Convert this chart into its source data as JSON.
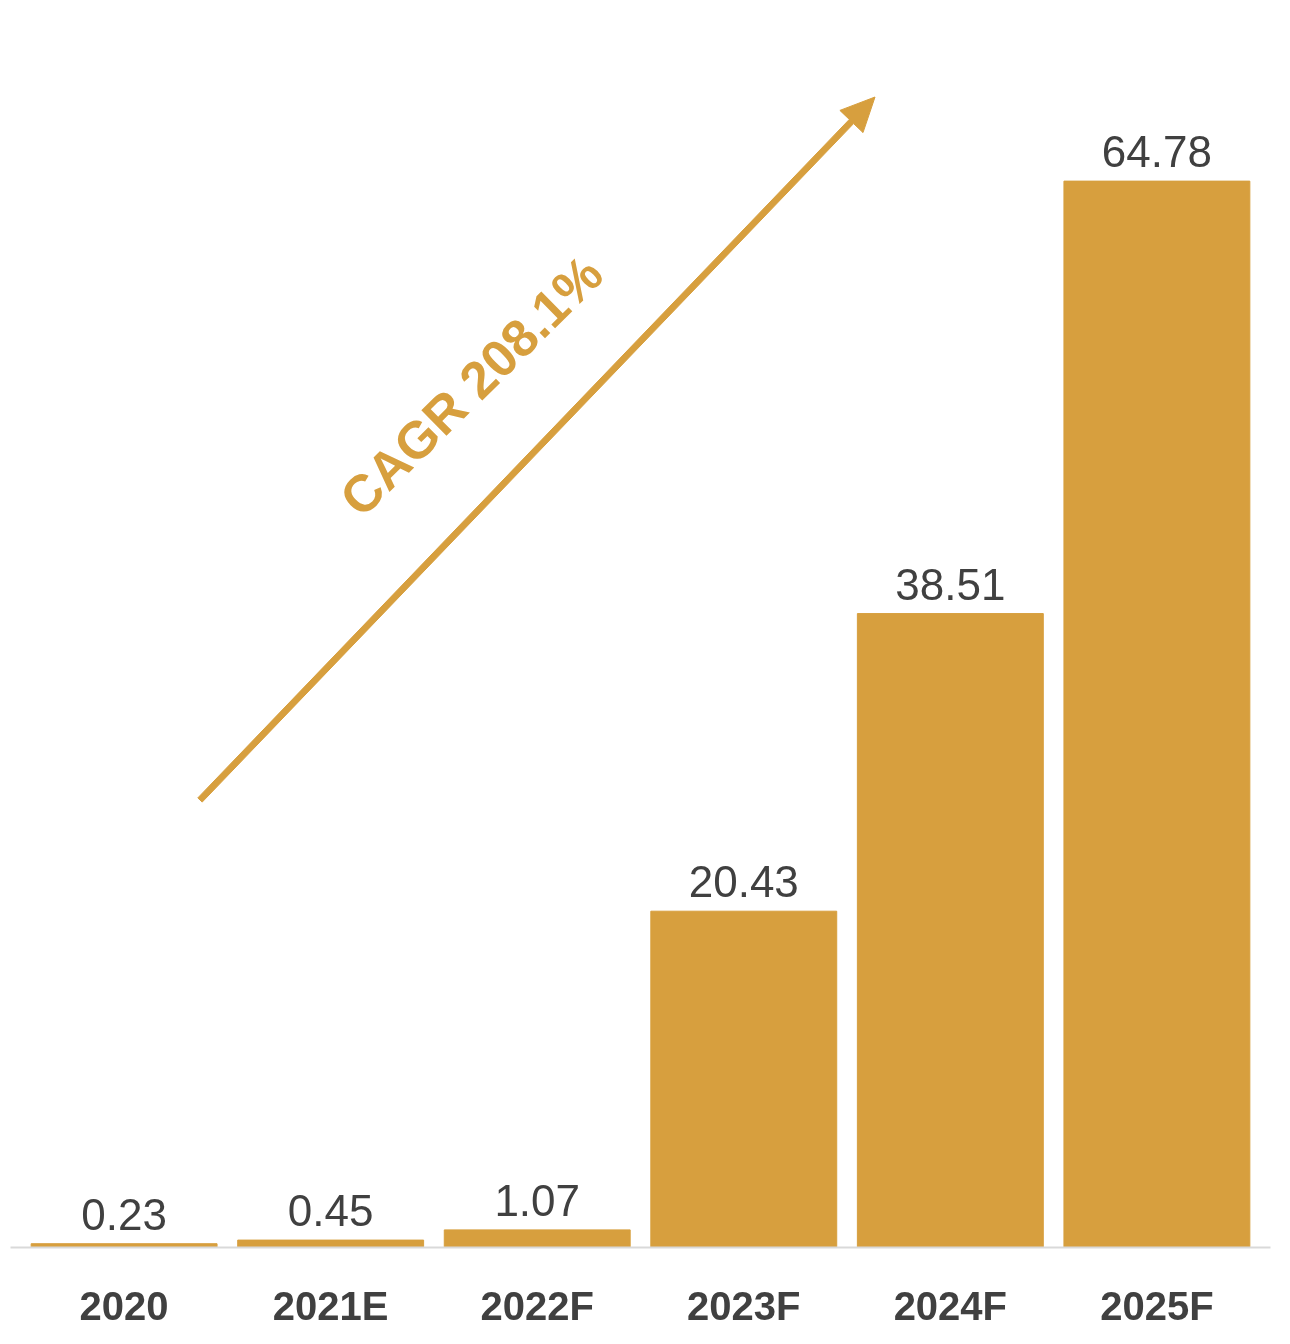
{
  "chart_data": {
    "type": "bar",
    "categories": [
      "2020",
      "2021E",
      "2022F",
      "2023F",
      "2024F",
      "2025F"
    ],
    "values": [
      0.23,
      0.45,
      1.07,
      20.43,
      38.51,
      64.78
    ],
    "color": "#d79f3e",
    "data_labels": true,
    "grid": false,
    "annotations": [
      "CAGR 208.1%"
    ]
  }
}
